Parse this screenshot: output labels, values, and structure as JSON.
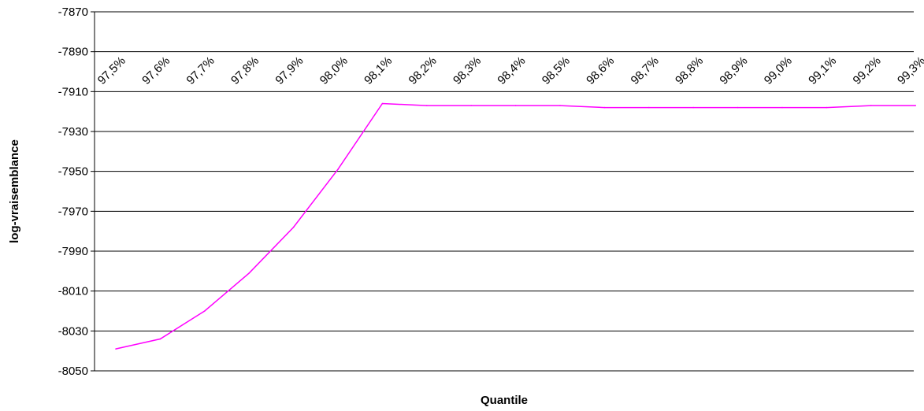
{
  "chart_data": {
    "type": "line",
    "title": "",
    "xlabel": "Quantile",
    "ylabel": "log-vraisemblance",
    "ylim": [
      -8050,
      -7870
    ],
    "yticks": [
      -7870,
      -7890,
      -7910,
      -7930,
      -7950,
      -7970,
      -7990,
      -8010,
      -8030,
      -8050
    ],
    "categories": [
      "97,5%",
      "97,6%",
      "97,7%",
      "97,8%",
      "97,9%",
      "98,0%",
      "98,1%",
      "98,2%",
      "98,3%",
      "98,4%",
      "98,5%",
      "98,6%",
      "98,7%",
      "98,8%",
      "98,9%",
      "99,0%",
      "99,1%",
      "99,2%",
      "99,3%"
    ],
    "series": [
      {
        "color": "#ff00ff",
        "values": [
          -8039,
          -8034,
          -8020,
          -8001,
          -7978,
          -7949,
          -7916,
          -7917,
          -7917,
          -7917,
          -7917,
          -7918,
          -7918,
          -7918,
          -7918,
          -7918,
          -7918,
          -7917,
          -7917
        ]
      }
    ],
    "grid": true,
    "legend": "none"
  }
}
